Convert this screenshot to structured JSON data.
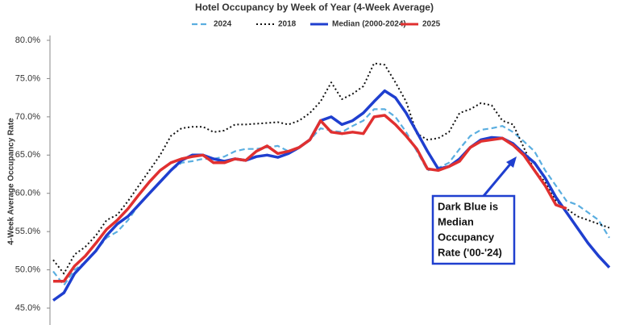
{
  "chart_data": {
    "type": "line",
    "title": "Hotel Occupancy by Week of Year (4-Week Average)",
    "y_label": "4-Week Average Occupancy Rate",
    "categories": [
      null,
      null,
      null,
      null,
      null,
      null,
      null,
      null,
      null,
      null,
      null,
      null,
      null,
      null,
      null,
      null,
      null,
      null,
      null,
      null,
      null,
      null,
      null,
      null,
      null,
      null,
      null,
      null,
      null,
      null,
      null,
      null,
      null,
      null,
      null,
      null,
      null,
      null,
      null,
      null,
      null,
      null,
      null,
      null,
      null,
      null,
      null,
      null,
      null,
      null,
      null,
      null,
      null
    ],
    "series": [
      {
        "name": "2024",
        "color": "#5aaee0",
        "dash": "dashed",
        "values": [
          49.8,
          48,
          50,
          51,
          52.5,
          54.2,
          55,
          56.5,
          58.5,
          60,
          61.5,
          63,
          64,
          64.2,
          64.5,
          64.5,
          64.8,
          65.5,
          65.8,
          65.8,
          66,
          66.2,
          65.5,
          66,
          67,
          68.5,
          68.2,
          68,
          68.8,
          69.5,
          71,
          71,
          70,
          68,
          65.5,
          63,
          63.3,
          64,
          65.8,
          67.5,
          68.3,
          68.5,
          68.8,
          68,
          66.8,
          65.5,
          63,
          61,
          59,
          58.5,
          57.5,
          56.5,
          54.2
        ]
      },
      {
        "name": "2018",
        "color": "#111111",
        "dash": "dotted",
        "values": [
          51.3,
          49.5,
          52,
          53,
          54.5,
          56.5,
          57.2,
          59,
          61,
          63,
          65,
          67.5,
          68.5,
          68.7,
          68.7,
          68,
          68.2,
          69,
          69,
          69.1,
          69.2,
          69.3,
          69,
          69.5,
          70.5,
          72,
          74.5,
          72.3,
          73,
          74,
          77,
          76.8,
          74.5,
          72,
          67.8,
          67,
          67.2,
          68,
          70.5,
          71,
          71.8,
          71.5,
          69.5,
          69,
          66,
          63,
          61.5,
          59,
          58,
          57,
          56.5,
          56,
          55.5
        ]
      },
      {
        "name": "Median (2000-2024)",
        "color": "#1f3fcf",
        "dash": "solid",
        "values": [
          46,
          47,
          49.5,
          51,
          52.5,
          54.5,
          56,
          57,
          58.5,
          60,
          61.5,
          63,
          64.3,
          65,
          65,
          64.5,
          64.2,
          64.5,
          64.3,
          64.8,
          65,
          64.7,
          65.2,
          66,
          67,
          69.5,
          70,
          69,
          69.5,
          70.5,
          72,
          73.4,
          72.5,
          70.5,
          68,
          65.5,
          63.2,
          63.5,
          64.5,
          66,
          67,
          67.3,
          67.2,
          66.5,
          65.2,
          64,
          62,
          59.5,
          57.5,
          55.5,
          53.5,
          51.8,
          50.3
        ]
      },
      {
        "name": "2025",
        "color": "#e03030",
        "dash": "solid",
        "values": [
          48.5,
          48.5,
          50.5,
          51.8,
          53.5,
          55.3,
          56.5,
          58,
          59.8,
          61.5,
          63,
          64,
          64.5,
          64.8,
          65,
          64,
          64,
          64.5,
          64.3,
          65.5,
          66.2,
          65.2,
          65.5,
          66,
          67,
          69.5,
          68,
          67.8,
          68,
          67.8,
          70,
          70.2,
          69,
          67.5,
          65.8,
          63.2,
          63,
          63.5,
          64.2,
          66,
          66.8,
          67,
          67.2,
          66.3,
          65,
          63,
          61,
          58.5,
          58,
          null,
          null,
          null,
          null
        ]
      }
    ],
    "ylim": [
      43,
      80
    ],
    "yticks": [
      {
        "value": 45,
        "label": "45.0%"
      },
      {
        "value": 50,
        "label": "50.0%"
      },
      {
        "value": 55,
        "label": "55.0%"
      },
      {
        "value": 60,
        "label": "60.0%"
      },
      {
        "value": 65,
        "label": "65.0%"
      },
      {
        "value": 70,
        "label": "70.0%"
      },
      {
        "value": 75,
        "label": "75.0%"
      },
      {
        "value": 80,
        "label": "80.0%"
      }
    ],
    "grid": false,
    "legend": "top",
    "annotation": [
      "Dark Blue is",
      "Median",
      "Occupancy",
      "Rate ('00-'24)"
    ]
  }
}
